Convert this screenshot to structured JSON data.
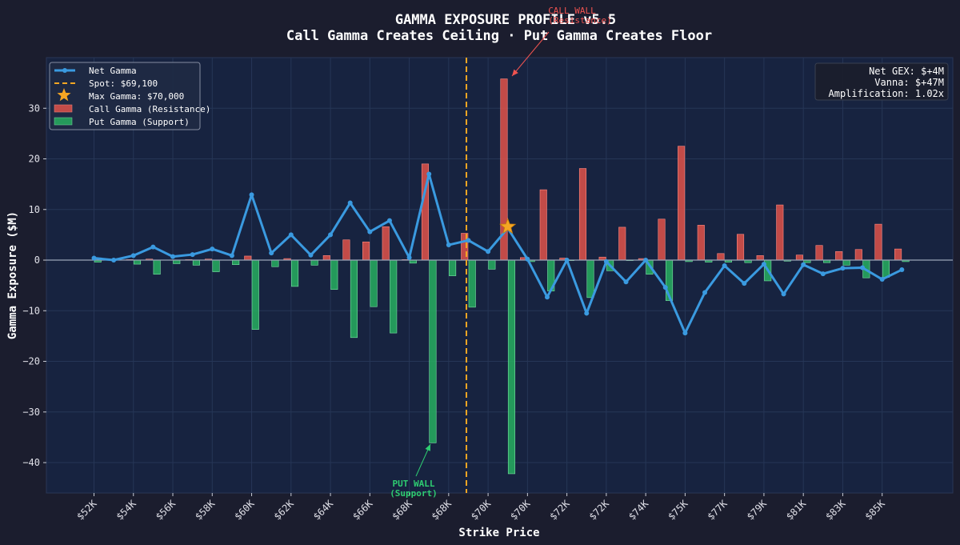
{
  "colors": {
    "background": "#1b1d2e",
    "plot_bg": "#172340",
    "call": "#e0524a",
    "put": "#27ae60",
    "net_line": "#3a9ae0",
    "spot": "#f5a623",
    "star": "#f5a623",
    "grid": "#263656",
    "zero": "#9aa4b8"
  },
  "chart_data": {
    "type": "bar",
    "title": "GAMMA EXPOSURE PROFILE v5.5",
    "subtitle": "Call Gamma Creates Ceiling · Put Gamma Creates Floor",
    "xlabel": "Strike Price",
    "ylabel": "Gamma Exposure ($M)",
    "ylim": [
      -46,
      40
    ],
    "yticks": [
      -40,
      -30,
      -20,
      -10,
      0,
      10,
      20,
      30
    ],
    "ytick_labels": [
      "−40",
      "−30",
      "−20",
      "−10",
      "0",
      "10",
      "20",
      "30"
    ],
    "grid": true,
    "legend_position": "top-left",
    "x_tick_labels": [
      "$52K",
      "$54K",
      "$56K",
      "$58K",
      "$60K",
      "$62K",
      "$64K",
      "$66K",
      "$68K",
      "$68K",
      "$70K",
      "$70K",
      "$72K",
      "$72K",
      "$74K",
      "$75K",
      "$77K",
      "$79K",
      "$81K",
      "$83K",
      "$85K"
    ],
    "x_tick_positions": [
      0,
      2,
      4,
      6,
      8,
      10,
      12,
      14,
      16,
      18,
      20,
      22,
      24,
      26,
      28,
      30,
      32,
      34,
      36,
      38,
      40
    ],
    "strike_count": 42,
    "series": [
      {
        "name": "Call Gamma (Resistance)",
        "values": [
          0,
          0,
          0.1,
          0.2,
          0,
          0.1,
          0.2,
          0,
          0.8,
          0,
          0.3,
          0,
          0.9,
          4.0,
          3.6,
          6.6,
          0.1,
          19.0,
          0,
          5.3,
          0,
          35.8,
          0.5,
          13.9,
          0.4,
          18.1,
          0.6,
          6.5,
          0.3,
          8.1,
          22.5,
          6.9,
          1.3,
          5.1,
          0.9,
          10.9,
          1.0,
          2.9,
          1.7,
          2.1,
          7.1,
          2.2
        ]
      },
      {
        "name": "Put Gamma (Support)",
        "values": [
          -0.4,
          0,
          -0.8,
          -2.8,
          -0.7,
          -1.0,
          -2.3,
          -0.9,
          -13.7,
          -1.3,
          -5.2,
          -1.0,
          -5.8,
          -15.3,
          -9.2,
          -14.4,
          -0.6,
          -36.1,
          -3.1,
          -9.3,
          -1.8,
          -42.2,
          -0.3,
          -6.1,
          -0.1,
          -7.4,
          -2.1,
          -0.1,
          -2.8,
          -8.0,
          -0.3,
          -0.4,
          -0.4,
          -0.5,
          -4.1,
          -0.2,
          -0.5,
          -0.5,
          -1.0,
          -3.5,
          -3.4,
          -0.3
        ]
      },
      {
        "name": "Net Gamma",
        "values": [
          0.4,
          0.0,
          0.9,
          2.6,
          0.7,
          1.1,
          2.2,
          0.9,
          12.9,
          1.4,
          5.0,
          1.0,
          5.0,
          11.3,
          5.6,
          7.8,
          0.5,
          17.0,
          3.0,
          3.9,
          1.7,
          6.3,
          0.2,
          -7.3,
          0.0,
          -10.5,
          -0.3,
          -4.3,
          0.0,
          -5.4,
          -14.4,
          -6.4,
          -1.1,
          -4.6,
          -0.8,
          -6.7,
          -0.9,
          -2.7,
          -1.6,
          -1.5,
          -3.8,
          -1.9
        ]
      }
    ],
    "spot_index": 18.9,
    "max_gamma_index": 21,
    "max_gamma_value": 6.6,
    "call_wall_index": 21,
    "call_wall_value": 35.8,
    "put_wall_index": 17,
    "put_wall_value": -36.1
  },
  "legend": {
    "net": "Net Gamma",
    "spot": "Spot: $69,100",
    "max": "Max Gamma: $70,000",
    "call": "Call Gamma (Resistance)",
    "put": "Put Gamma (Support)"
  },
  "stats": {
    "line1": "Net GEX: $+4M",
    "line2": "Vanna: $+47M",
    "line3": "Amplification: 1.02x"
  },
  "annotations": {
    "call_wall_line1": "CALL WALL",
    "call_wall_line2": "(Resistance)",
    "put_wall_line1": "PUT WALL",
    "put_wall_line2": "(Support)"
  }
}
